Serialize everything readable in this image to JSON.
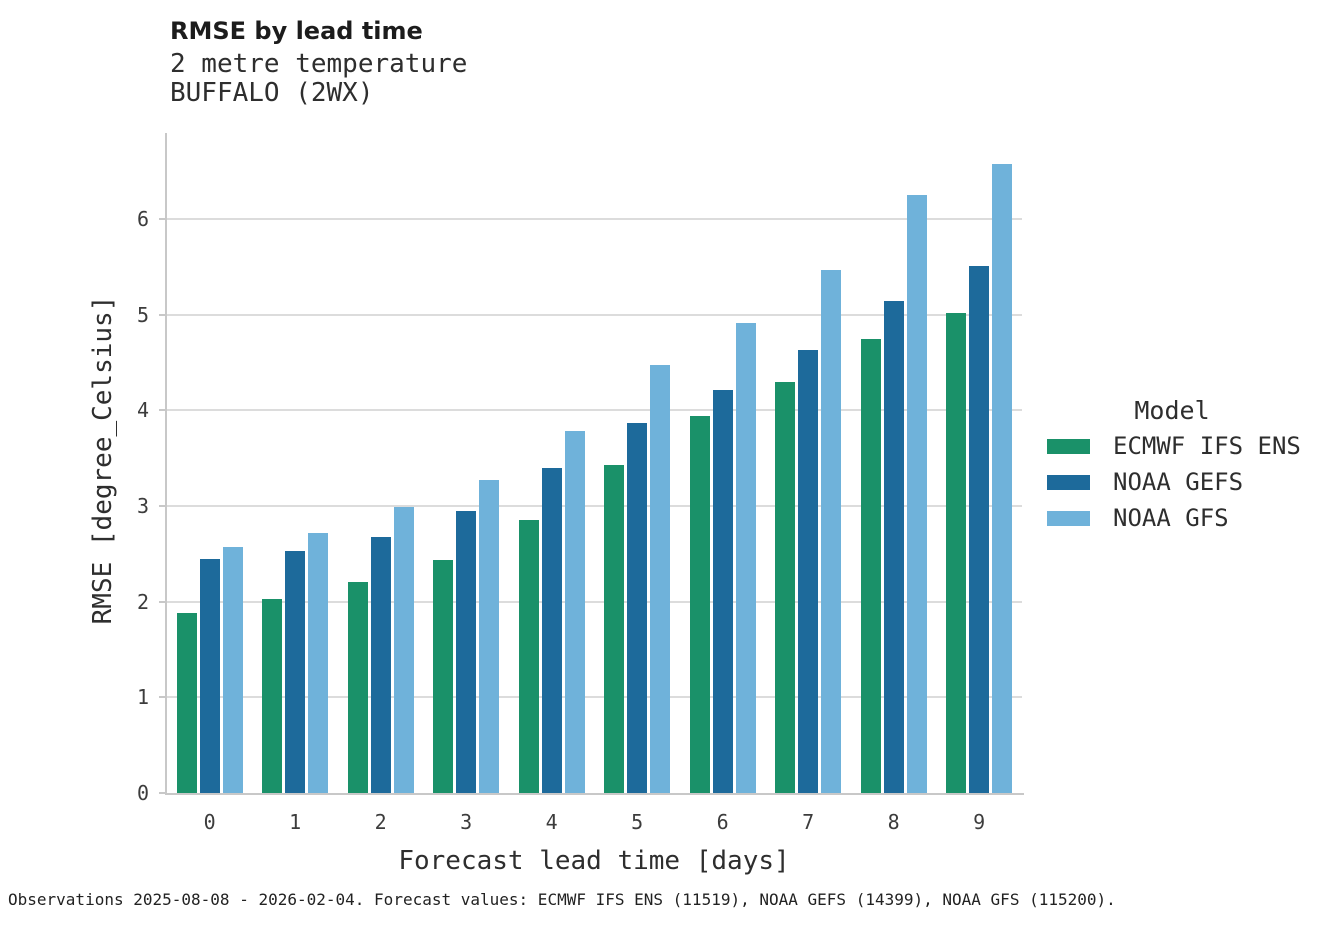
{
  "chart_data": {
    "type": "bar",
    "title": "RMSE by lead time",
    "subtitle": "2 metre temperature",
    "station": "BUFFALO (2WX)",
    "xlabel": "Forecast lead time [days]",
    "ylabel": "RMSE [degree_Celsius]",
    "categories": [
      "0",
      "1",
      "2",
      "3",
      "4",
      "5",
      "6",
      "7",
      "8",
      "9"
    ],
    "series": [
      {
        "name": "ECMWF IFS ENS",
        "color": "#1a9169",
        "values": [
          1.88,
          2.03,
          2.21,
          2.44,
          2.85,
          3.43,
          3.94,
          4.3,
          4.75,
          5.02
        ]
      },
      {
        "name": "NOAA GEFS",
        "color": "#1d6a9b",
        "values": [
          2.45,
          2.53,
          2.68,
          2.95,
          3.4,
          3.87,
          4.21,
          4.63,
          5.14,
          5.51
        ]
      },
      {
        "name": "NOAA GFS",
        "color": "#6fb2da",
        "values": [
          2.57,
          2.72,
          2.99,
          3.27,
          3.78,
          4.47,
          4.91,
          5.47,
          6.25,
          6.58
        ]
      }
    ],
    "ylim": [
      0,
      6.9
    ],
    "yticks": [
      0,
      1,
      2,
      3,
      4,
      5,
      6
    ],
    "grid": "horizontal",
    "legend_title": "Model",
    "legend_position": "right",
    "colors": {
      "gridline": "#dcdcdc",
      "spine": "#c8c8c8",
      "text": "#2e2e2e"
    }
  },
  "footer": {
    "text": "Observations 2025-08-08 - 2026-02-04. Forecast values: ECMWF IFS ENS (11519), NOAA GEFS (14399), NOAA GFS (115200)."
  }
}
